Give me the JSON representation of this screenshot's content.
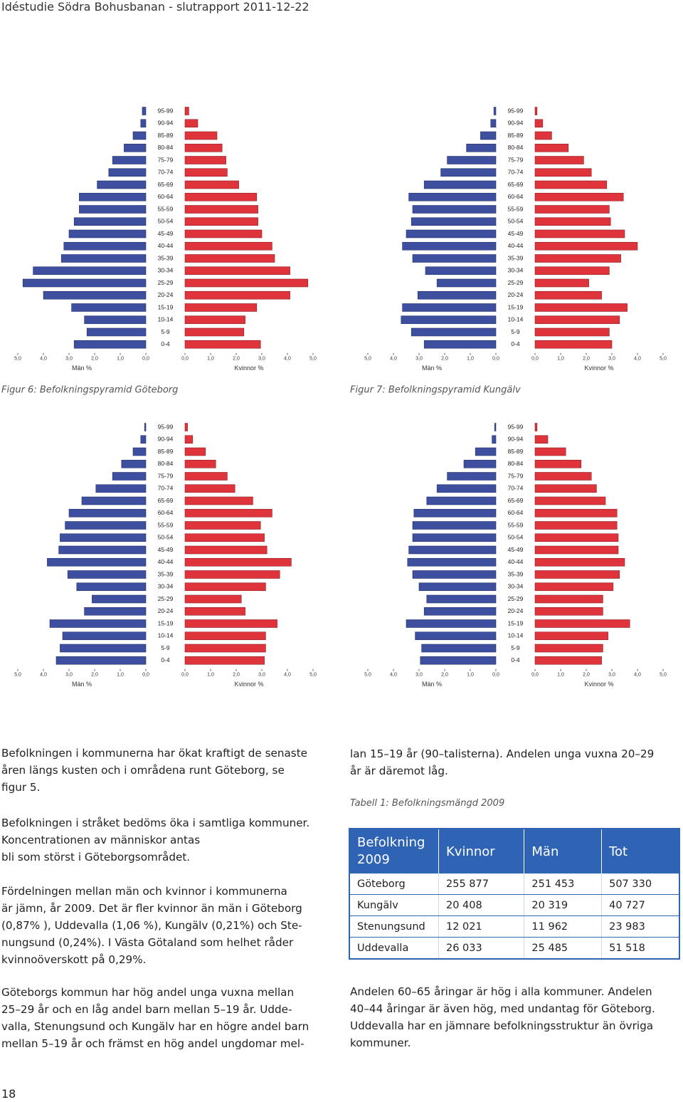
{
  "header": {
    "title": "Idéstudie Södra Bohusbanan - slutrapport 2011-12-22"
  },
  "chart_data": [
    {
      "type": "pyramid",
      "caption": "Figur 6: Befolkningspyramid Göteborg",
      "categories": [
        "95-99",
        "90-94",
        "85-89",
        "80-84",
        "75-79",
        "70-74",
        "65-69",
        "60-64",
        "55-59",
        "50-54",
        "45-49",
        "40-44",
        "35-39",
        "30-34",
        "25-29",
        "20-24",
        "15-19",
        "10-14",
        "5-9",
        "0-4"
      ],
      "series": [
        {
          "name": "Män %",
          "color": "#3d4f9e",
          "values": [
            0.14,
            0.2,
            0.5,
            0.85,
            1.3,
            1.45,
            1.9,
            2.6,
            2.6,
            2.8,
            3.0,
            3.2,
            3.3,
            4.4,
            4.8,
            4.0,
            2.9,
            2.4,
            2.3,
            2.8
          ]
        },
        {
          "name": "Kvinnor %",
          "color": "#e0343c",
          "values": [
            0.15,
            0.5,
            1.25,
            1.45,
            1.6,
            1.65,
            2.1,
            2.8,
            2.85,
            2.85,
            3.0,
            3.4,
            3.5,
            4.1,
            4.8,
            4.1,
            2.8,
            2.35,
            2.3,
            2.95
          ]
        }
      ],
      "xlim": [
        0,
        5
      ],
      "xticks": [
        {
          "value": 0,
          "label": "0,0"
        },
        {
          "value": 1,
          "label": "1,0"
        },
        {
          "value": 2,
          "label": "2,0"
        },
        {
          "value": 3,
          "label": "3,0"
        },
        {
          "value": 4,
          "label": "4,0"
        },
        {
          "value": 5,
          "label": "5,0"
        }
      ]
    },
    {
      "type": "pyramid",
      "caption": "Figur 7: Befolkningspyramid Kungälv",
      "categories": [
        "95-99",
        "90-94",
        "85-89",
        "80-84",
        "75-79",
        "70-74",
        "65-69",
        "60-64",
        "55-59",
        "50-54",
        "45-49",
        "40-44",
        "35-39",
        "30-34",
        "25-29",
        "20-24",
        "15-19",
        "10-14",
        "5-9",
        "0-4"
      ],
      "series": [
        {
          "name": "Män %",
          "color": "#3d4f9e",
          "values": [
            0.08,
            0.2,
            0.6,
            1.15,
            1.9,
            2.15,
            2.8,
            3.4,
            3.25,
            3.3,
            3.5,
            3.65,
            3.25,
            2.75,
            2.3,
            3.05,
            3.65,
            3.7,
            3.3,
            2.8
          ]
        },
        {
          "name": "Kvinnor %",
          "color": "#e0343c",
          "values": [
            0.08,
            0.3,
            0.65,
            1.3,
            1.9,
            2.2,
            2.8,
            3.45,
            2.9,
            2.95,
            3.5,
            4.0,
            3.35,
            2.9,
            2.1,
            2.6,
            3.6,
            3.3,
            2.9,
            3.0
          ]
        }
      ],
      "xlim": [
        0,
        5
      ],
      "xticks": [
        {
          "value": 0,
          "label": "0,0"
        },
        {
          "value": 1,
          "label": "1,0"
        },
        {
          "value": 2,
          "label": "2,0"
        },
        {
          "value": 3,
          "label": "3,0"
        },
        {
          "value": 4,
          "label": "4,0"
        },
        {
          "value": 5,
          "label": "5,0"
        }
      ]
    },
    {
      "type": "pyramid",
      "caption": "Figur 8: Befolkningspyramid Stenungsund",
      "categories": [
        "95-99",
        "90-94",
        "85-89",
        "80-84",
        "75-79",
        "70-74",
        "65-69",
        "60-64",
        "55-59",
        "50-54",
        "45-49",
        "40-44",
        "35-39",
        "30-34",
        "25-29",
        "20-24",
        "15-19",
        "10-14",
        "5-9",
        "0-4"
      ],
      "series": [
        {
          "name": "Män %",
          "color": "#3d4f9e",
          "values": [
            0.05,
            0.2,
            0.5,
            0.95,
            1.3,
            1.95,
            2.5,
            3.0,
            3.15,
            3.35,
            3.4,
            3.85,
            3.05,
            2.7,
            2.1,
            2.4,
            3.75,
            3.25,
            3.35,
            3.5
          ]
        },
        {
          "name": "Kvinnor %",
          "color": "#e0343c",
          "values": [
            0.1,
            0.3,
            0.8,
            1.2,
            1.65,
            1.95,
            2.65,
            3.4,
            2.95,
            3.1,
            3.2,
            4.15,
            3.7,
            3.15,
            2.2,
            2.35,
            3.6,
            3.15,
            3.15,
            3.1
          ]
        }
      ],
      "xlim": [
        0,
        5
      ],
      "xticks": [
        {
          "value": 0,
          "label": "0,0"
        },
        {
          "value": 1,
          "label": "1,0"
        },
        {
          "value": 2,
          "label": "2,0"
        },
        {
          "value": 3,
          "label": "3,0"
        },
        {
          "value": 4,
          "label": "4,0"
        },
        {
          "value": 5,
          "label": "5,0"
        }
      ]
    },
    {
      "type": "pyramid",
      "caption": "Figur 9: Befolkningspyramid Uddevalla",
      "categories": [
        "95-99",
        "90-94",
        "85-89",
        "80-84",
        "75-79",
        "70-74",
        "65-69",
        "60-64",
        "55-59",
        "50-54",
        "45-49",
        "40-44",
        "35-39",
        "30-34",
        "25-29",
        "20-24",
        "15-19",
        "10-14",
        "5-9",
        "0-4"
      ],
      "series": [
        {
          "name": "Män %",
          "color": "#3d4f9e",
          "values": [
            0.05,
            0.15,
            0.8,
            1.25,
            1.9,
            2.3,
            2.7,
            3.2,
            3.25,
            3.25,
            3.4,
            3.45,
            3.25,
            3.0,
            2.7,
            2.8,
            3.5,
            3.15,
            2.9,
            2.95
          ]
        },
        {
          "name": "Kvinnor %",
          "color": "#e0343c",
          "values": [
            0.08,
            0.5,
            1.2,
            1.8,
            2.2,
            2.4,
            2.75,
            3.2,
            3.2,
            3.25,
            3.25,
            3.5,
            3.3,
            3.05,
            2.65,
            2.65,
            3.7,
            2.85,
            2.65,
            2.6
          ]
        }
      ],
      "xlim": [
        0,
        5
      ],
      "xticks": [
        {
          "value": 0,
          "label": "0,0"
        },
        {
          "value": 1,
          "label": "1,0"
        },
        {
          "value": 2,
          "label": "2,0"
        },
        {
          "value": 3,
          "label": "3,0"
        },
        {
          "value": 4,
          "label": "4,0"
        },
        {
          "value": 5,
          "label": "5,0"
        }
      ]
    }
  ],
  "left_column": [
    [
      "Befolkningen i kommunerna har ökat kraftigt de senaste",
      "åren längs kusten och i områdena runt Göteborg, se",
      "figur 5."
    ],
    [
      "Befolkningen i stråket bedöms öka i samtliga kommuner.",
      "Koncentrationen av människor antas",
      "bli som störst i Göteborgsområdet."
    ],
    [
      "Fördelningen mellan män och kvinnor i kommunerna",
      "är jämn, år 2009. Det är fler kvinnor än män i Göteborg",
      "(0,87% ), Uddevalla (1,06 %), Kungälv (0,21%) och Ste-",
      "nungsund (0,24%). I Västa Götaland som helhet råder",
      "kvinnoöverskott på 0,29%."
    ],
    [
      "Göteborgs kommun har hög andel unga vuxna mellan",
      "25–29 år och en låg andel barn mellan 5–19 år. Udde-",
      "valla, Stenungsund och Kungälv har en högre andel barn",
      "mellan 5–19 år och främst en hög andel ungdomar mel-"
    ]
  ],
  "right_column": {
    "intro": [
      "lan 15–19 år (90–talisterna). Andelen unga vuxna 20–29",
      "år är däremot låg."
    ],
    "outro": [
      "Andelen 60–65 åringar är hög i alla kommuner. Andelen",
      "40–44 åringar är även hög, med undantag för Göteborg.",
      "Uddevalla har en jämnare befolkningsstruktur än övriga",
      "kommuner."
    ]
  },
  "table": {
    "caption": "Tabell 1: Befolkningsmängd 2009",
    "header": [
      "Befolkning 2009",
      "Kvinnor",
      "Män",
      "Tot"
    ],
    "rows": [
      [
        "Göteborg",
        "255 877",
        "251 453",
        "507 330"
      ],
      [
        "Kungälv",
        "20 408",
        "20 319",
        "40 727"
      ],
      [
        "Stenungsund",
        "12 021",
        "11 962",
        "23 983"
      ],
      [
        "Uddevalla",
        "26 033",
        "25 485",
        "51 518"
      ]
    ]
  },
  "page_number": "18"
}
